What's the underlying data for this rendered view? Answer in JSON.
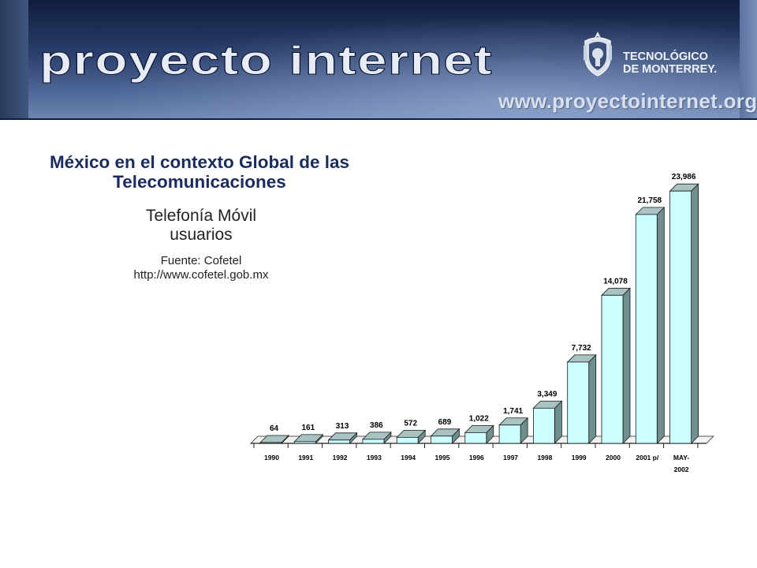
{
  "header": {
    "brand": "proyecto internet",
    "logo_name_line1": "TECNOLÓGICO",
    "logo_name_line2": "DE MONTERREY.",
    "url": "www.proyectointernet.org"
  },
  "text": {
    "title_line1": "México en el contexto Global de las",
    "title_line2": "Telecomunicaciones",
    "subtitle_line1": "Telefonía Móvil",
    "subtitle_line2": "usuarios",
    "source_line1": "Fuente: Cofetel",
    "source_line2": "http://www.cofetel.gob.mx"
  },
  "colors": {
    "title": "#1b2b5e",
    "bar_front": "#ccffff",
    "bar_side": "#6f8f8e",
    "bar_top": "#a9c3c3"
  },
  "chart_data": {
    "type": "bar",
    "title": "Telefonía Móvil",
    "ylabel": "usuarios",
    "xlabel": "",
    "ylim": [
      0,
      24000
    ],
    "grid": false,
    "legend": "none",
    "categories": [
      "1990",
      "1991",
      "1992",
      "1993",
      "1994",
      "1995",
      "1996",
      "1997",
      "1998",
      "1999",
      "2000",
      "2001 p/",
      "MAY-\n2002"
    ],
    "values": [
      64,
      161,
      313,
      386,
      572,
      689,
      1022,
      1741,
      3349,
      7732,
      14078,
      21758,
      23986
    ],
    "value_labels": [
      "64",
      "161",
      "313",
      "386",
      "572",
      "689",
      "1,022",
      "1,741",
      "3,349",
      "7,732",
      "14,078",
      "21,758",
      "23,986"
    ]
  }
}
